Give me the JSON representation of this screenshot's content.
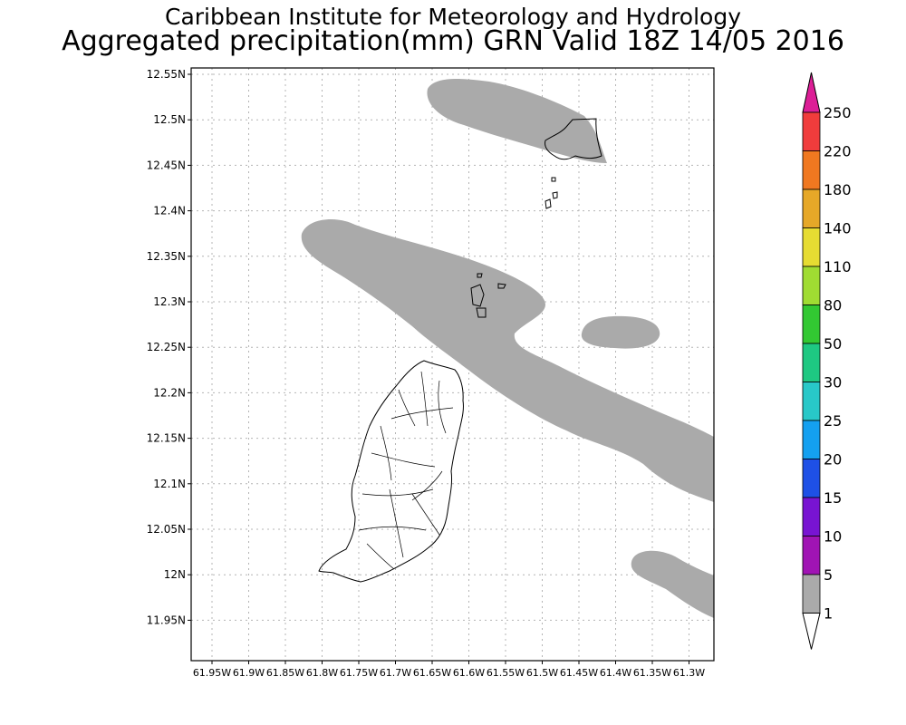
{
  "header": {
    "title_line1": "Caribbean Institute for Meteorology and Hydrology",
    "title_line2": "Aggregated precipitation(mm) GRN Valid 18Z 14/05 2016"
  },
  "map": {
    "lat_labels": [
      "12.55N",
      "12.5N",
      "12.45N",
      "12.4N",
      "12.35N",
      "12.3N",
      "12.25N",
      "12.2N",
      "12.15N",
      "12.1N",
      "12.05N",
      "12N",
      "11.95N"
    ],
    "lon_labels": [
      "61.95W",
      "61.9W",
      "61.85W",
      "61.8W",
      "61.75W",
      "61.7W",
      "61.65W",
      "61.6W",
      "61.55W",
      "61.5W",
      "61.45W",
      "61.4W",
      "61.35W",
      "61.3W"
    ],
    "rain_color": "#aaaaaa",
    "land_outline_color": "#000000"
  },
  "colorbar": {
    "labels": [
      "250",
      "220",
      "180",
      "140",
      "110",
      "80",
      "50",
      "30",
      "25",
      "20",
      "15",
      "10",
      "5",
      "1"
    ],
    "colors": [
      "#f03c3c",
      "#f07820",
      "#e6a828",
      "#e6dc32",
      "#a0dc32",
      "#32c832",
      "#1ec882",
      "#28c8c8",
      "#14a0f0",
      "#1e50e6",
      "#7814d2",
      "#a014b4",
      "#aaaaaa"
    ],
    "top_arrow_color": "#dc1e96",
    "bottom_arrow_color": "#ffffff"
  }
}
